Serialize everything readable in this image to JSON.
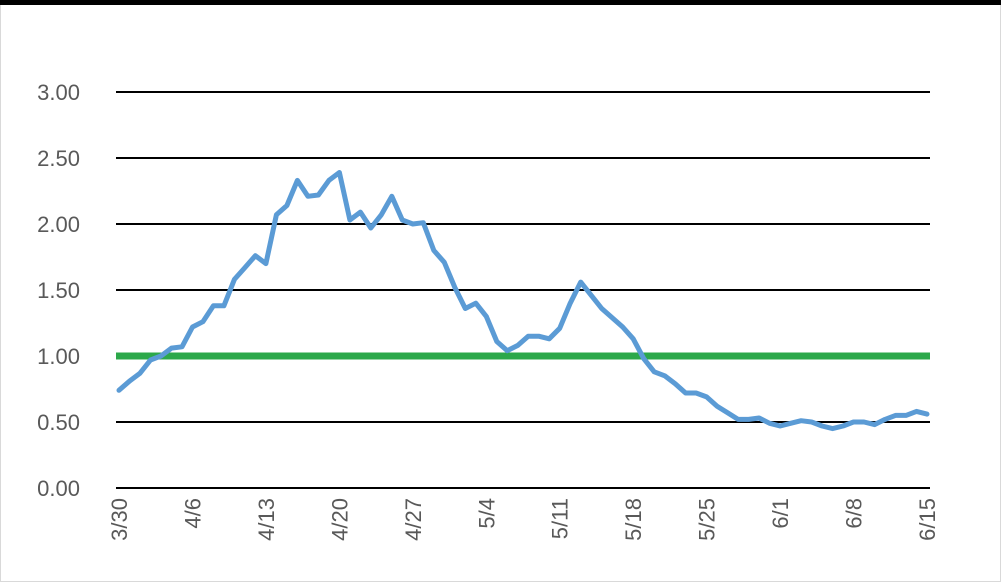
{
  "chart_data": {
    "type": "line",
    "title": "",
    "xlabel": "",
    "ylabel": "",
    "ylim": [
      0,
      3
    ],
    "yticks": [
      "0.00",
      "0.50",
      "1.00",
      "1.50",
      "2.00",
      "2.50",
      "3.00"
    ],
    "grid": true,
    "legend": "none",
    "x_tick_labels": [
      "3/30",
      "4/6",
      "4/13",
      "4/20",
      "4/27",
      "5/4",
      "5/11",
      "5/18",
      "5/25",
      "6/1",
      "6/8",
      "6/15"
    ],
    "x": [
      "3/30",
      "3/31",
      "4/1",
      "4/2",
      "4/3",
      "4/4",
      "4/5",
      "4/6",
      "4/7",
      "4/8",
      "4/9",
      "4/10",
      "4/11",
      "4/12",
      "4/13",
      "4/14",
      "4/15",
      "4/16",
      "4/17",
      "4/18",
      "4/19",
      "4/20",
      "4/21",
      "4/22",
      "4/23",
      "4/24",
      "4/25",
      "4/26",
      "4/27",
      "4/28",
      "4/29",
      "4/30",
      "5/1",
      "5/2",
      "5/3",
      "5/4",
      "5/5",
      "5/6",
      "5/7",
      "5/8",
      "5/9",
      "5/10",
      "5/11",
      "5/12",
      "5/13",
      "5/14",
      "5/15",
      "5/16",
      "5/17",
      "5/18",
      "5/19",
      "5/20",
      "5/21",
      "5/22",
      "5/23",
      "5/24",
      "5/25",
      "5/26",
      "5/27",
      "5/28",
      "5/29",
      "5/30",
      "5/31",
      "6/1",
      "6/2",
      "6/3",
      "6/4",
      "6/5",
      "6/6",
      "6/7",
      "6/8",
      "6/9",
      "6/10",
      "6/11",
      "6/12",
      "6/13",
      "6/14",
      "6/15"
    ],
    "series": [
      {
        "color": "#5b9bd5",
        "values": [
          0.74,
          0.81,
          0.87,
          0.97,
          1.0,
          1.06,
          1.07,
          1.22,
          1.26,
          1.38,
          1.38,
          1.58,
          1.67,
          1.76,
          1.7,
          2.07,
          2.14,
          2.33,
          2.21,
          2.22,
          2.33,
          2.39,
          2.03,
          2.09,
          1.97,
          2.07,
          2.21,
          2.03,
          2.0,
          2.01,
          1.8,
          1.71,
          1.52,
          1.36,
          1.4,
          1.3,
          1.11,
          1.04,
          1.08,
          1.15,
          1.15,
          1.13,
          1.21,
          1.4,
          1.56,
          1.46,
          1.36,
          1.29,
          1.22,
          1.13,
          0.98,
          0.88,
          0.85,
          0.79,
          0.72,
          0.72,
          0.69,
          0.62,
          0.57,
          0.52,
          0.52,
          0.53,
          0.49,
          0.47,
          0.49,
          0.51,
          0.5,
          0.47,
          0.45,
          0.47,
          0.5,
          0.5,
          0.48,
          0.52,
          0.55,
          0.55,
          0.58,
          0.56
        ]
      }
    ],
    "reference_line": {
      "y": 1.0,
      "color": "#2ca84a"
    }
  }
}
